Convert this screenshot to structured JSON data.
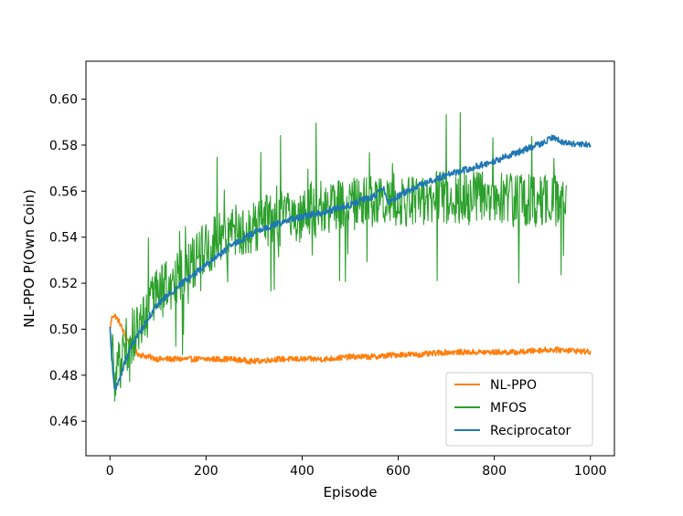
{
  "chart_data": {
    "type": "line",
    "title": "",
    "xlabel": "Episode",
    "ylabel": "NL-PPO P(Own Coin)",
    "xlim": [
      -50,
      1050
    ],
    "ylim": [
      0.445,
      0.6165
    ],
    "xticks": [
      0,
      200,
      400,
      600,
      800,
      1000
    ],
    "yticks": [
      0.46,
      0.48,
      0.5,
      0.52,
      0.54,
      0.56,
      0.58,
      0.6
    ],
    "xtick_labels": [
      "0",
      "200",
      "400",
      "600",
      "800",
      "1000"
    ],
    "ytick_labels": [
      "0.46",
      "0.48",
      "0.50",
      "0.52",
      "0.54",
      "0.56",
      "0.58",
      "0.60"
    ],
    "grid": false,
    "legend_position": "lower-right",
    "series": [
      {
        "name": "NL-PPO",
        "color": "#ff7f0e",
        "noise": 0.0012,
        "x": [
          0,
          5,
          10,
          20,
          30,
          40,
          50,
          60,
          80,
          100,
          150,
          200,
          250,
          300,
          350,
          400,
          450,
          500,
          550,
          600,
          650,
          700,
          750,
          800,
          850,
          900,
          950,
          1000
        ],
        "y": [
          0.5,
          0.506,
          0.506,
          0.503,
          0.498,
          0.494,
          0.491,
          0.489,
          0.488,
          0.487,
          0.487,
          0.487,
          0.487,
          0.486,
          0.487,
          0.487,
          0.487,
          0.488,
          0.488,
          0.489,
          0.489,
          0.49,
          0.49,
          0.49,
          0.49,
          0.491,
          0.491,
          0.49
        ]
      },
      {
        "name": "MFOS",
        "color": "#2ca02c",
        "noise": 0.012,
        "x": [
          0,
          5,
          10,
          20,
          30,
          40,
          50,
          60,
          80,
          100,
          150,
          200,
          250,
          300,
          350,
          400,
          450,
          500,
          550,
          600,
          650,
          700,
          750,
          800,
          850,
          900,
          950
        ],
        "y": [
          0.5,
          0.49,
          0.478,
          0.485,
          0.492,
          0.495,
          0.498,
          0.502,
          0.508,
          0.515,
          0.525,
          0.535,
          0.542,
          0.545,
          0.548,
          0.55,
          0.553,
          0.555,
          0.556,
          0.556,
          0.557,
          0.557,
          0.558,
          0.557,
          0.556,
          0.556,
          0.555
        ]
      },
      {
        "name": "Reciprocator",
        "color": "#1f77b4",
        "noise": 0.0014,
        "x": [
          0,
          5,
          10,
          20,
          30,
          40,
          50,
          60,
          80,
          100,
          150,
          200,
          250,
          300,
          350,
          400,
          450,
          500,
          550,
          570,
          580,
          600,
          650,
          700,
          750,
          800,
          850,
          900,
          920,
          950,
          1000
        ],
        "y": [
          0.5,
          0.485,
          0.473,
          0.478,
          0.485,
          0.49,
          0.495,
          0.498,
          0.505,
          0.511,
          0.52,
          0.528,
          0.536,
          0.542,
          0.546,
          0.549,
          0.551,
          0.554,
          0.558,
          0.561,
          0.555,
          0.558,
          0.563,
          0.567,
          0.57,
          0.573,
          0.577,
          0.581,
          0.583,
          0.581,
          0.58
        ]
      }
    ]
  }
}
